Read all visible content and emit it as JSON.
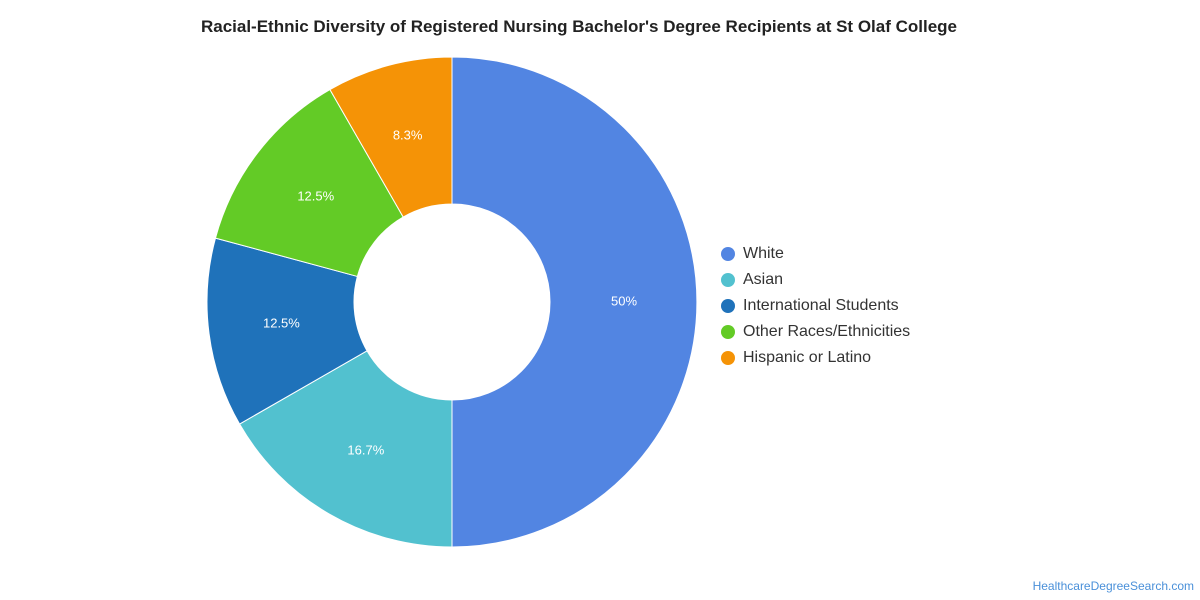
{
  "chart_data": {
    "type": "pie",
    "title": "Racial-Ethnic Diversity of Registered Nursing Bachelor's Degree Recipients at St Olaf College",
    "categories": [
      "White",
      "Asian",
      "International Students",
      "Other Races/Ethnicities",
      "Hispanic or Latino"
    ],
    "values": [
      50,
      16.7,
      12.5,
      12.5,
      8.3
    ],
    "data_labels": [
      "50%",
      "16.7%",
      "12.5%",
      "12.5%",
      "8.3%"
    ],
    "colors": [
      "#5285e2",
      "#52c1cf",
      "#1f72ba",
      "#63cb26",
      "#f59306"
    ],
    "donut": true,
    "legend_position": "right"
  },
  "source_link": "HealthcareDegreeSearch.com"
}
